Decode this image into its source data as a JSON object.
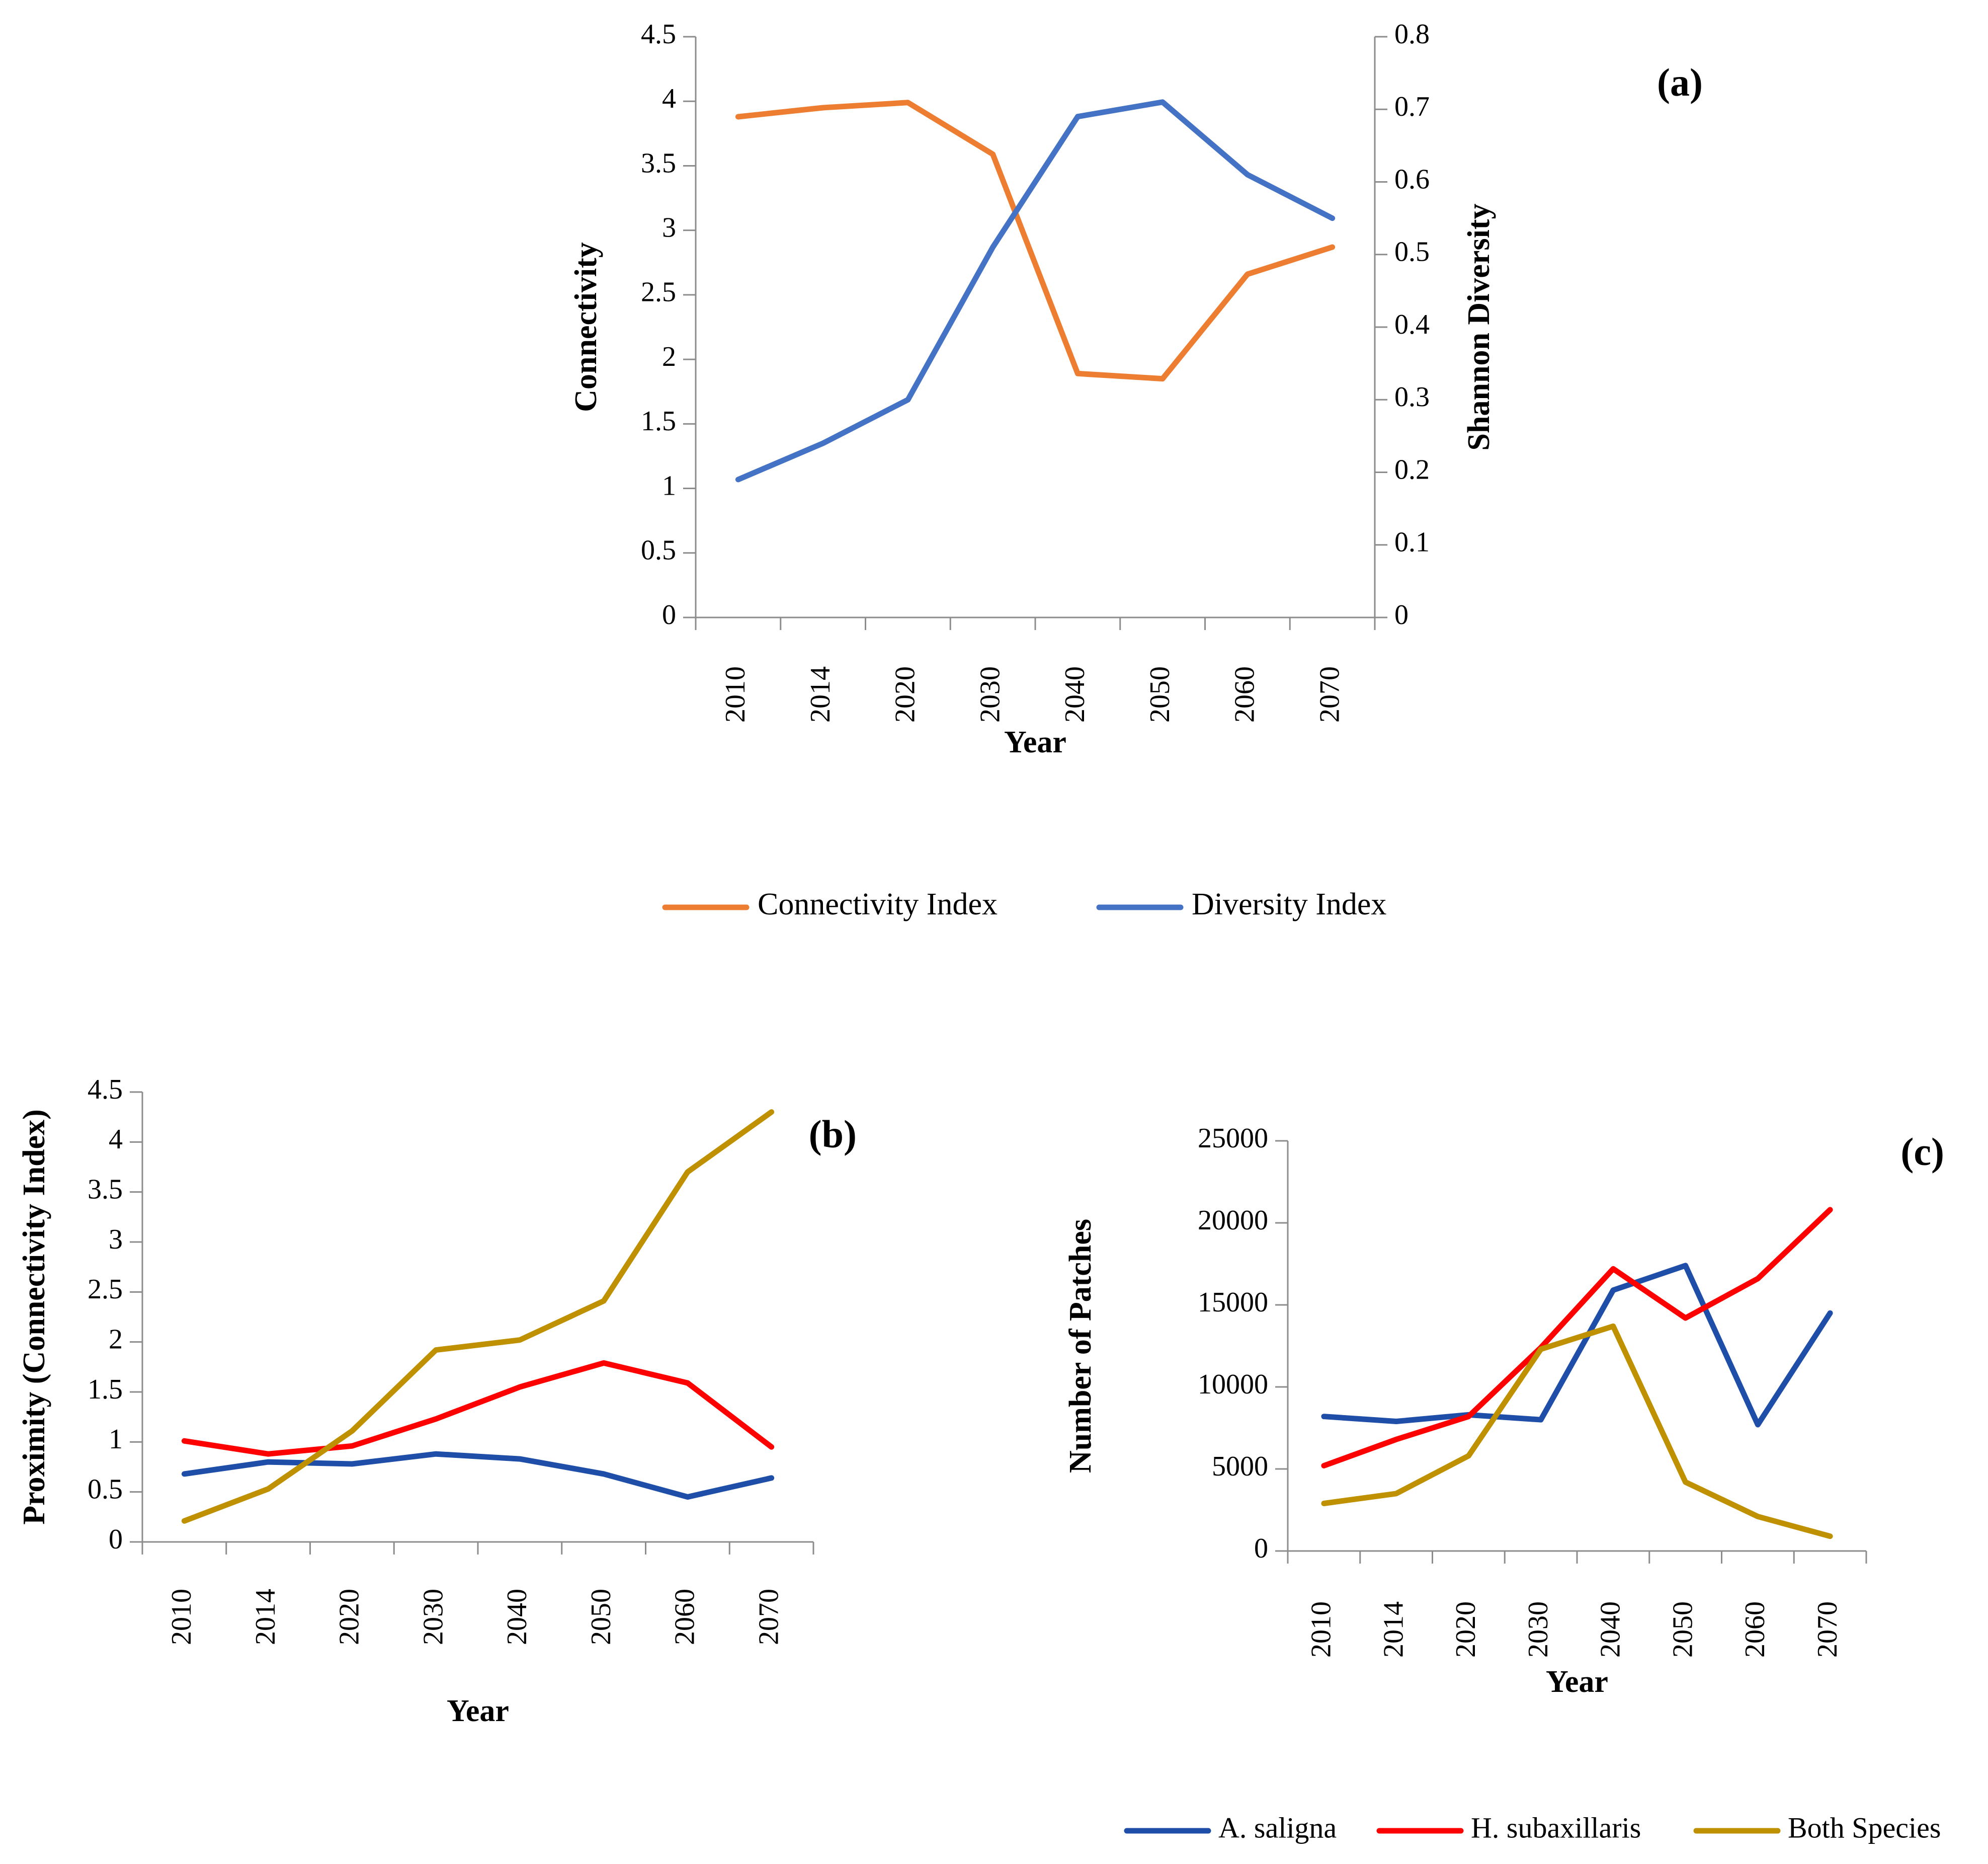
{
  "chart_data": [
    {
      "id": "a",
      "type": "line",
      "panel_label": "(a)",
      "categories": [
        "2010",
        "2014",
        "2020",
        "2030",
        "2040",
        "2050",
        "2060",
        "2070"
      ],
      "xlabel": "Year",
      "ylabel": "Connectivity",
      "ylabel_right": "Shannon Diversity",
      "ylim": [
        0,
        4.5
      ],
      "yticks": [
        "0",
        "0.5",
        "1",
        "1.5",
        "2",
        "2.5",
        "3",
        "3.5",
        "4",
        "4.5"
      ],
      "ylim_right": [
        0,
        0.8
      ],
      "yticks_right": [
        "0",
        "0.1",
        "0.2",
        "0.3",
        "0.4",
        "0.5",
        "0.6",
        "0.7",
        "0.8"
      ],
      "series": [
        {
          "name": "Connectivity Index",
          "axis": "left",
          "color": "#ED7D31",
          "values": [
            3.88,
            3.95,
            3.99,
            3.59,
            1.89,
            1.85,
            2.66,
            2.87
          ]
        },
        {
          "name": "Diversity Index",
          "axis": "right",
          "color": "#4472C4",
          "values": [
            0.19,
            0.24,
            0.3,
            0.51,
            0.69,
            0.71,
            0.61,
            0.55
          ]
        }
      ],
      "legend": [
        "Connectivity Index",
        "Diversity Index"
      ]
    },
    {
      "id": "b",
      "type": "line",
      "panel_label": "(b)",
      "categories": [
        "2010",
        "2014",
        "2020",
        "2030",
        "2040",
        "2050",
        "2060",
        "2070"
      ],
      "xlabel": "Year",
      "ylabel": "Proximity (Connectivity Index)",
      "ylim": [
        0,
        4.5
      ],
      "yticks": [
        "0",
        "0.5",
        "1",
        "1.5",
        "2",
        "2.5",
        "3",
        "3.5",
        "4",
        "4.5"
      ],
      "series": [
        {
          "name": "A. saligna",
          "color": "#1F4EA8",
          "values": [
            0.68,
            0.8,
            0.78,
            0.88,
            0.83,
            0.68,
            0.45,
            0.64
          ]
        },
        {
          "name": "H. subaxillaris",
          "color": "#FF0000",
          "values": [
            1.01,
            0.88,
            0.96,
            1.23,
            1.55,
            1.79,
            1.59,
            0.95
          ]
        },
        {
          "name": "Both Species",
          "color": "#BF9000",
          "values": [
            0.21,
            0.53,
            1.11,
            1.92,
            2.02,
            2.41,
            3.7,
            4.3
          ]
        }
      ]
    },
    {
      "id": "c",
      "type": "line",
      "panel_label": "(c)",
      "categories": [
        "2010",
        "2014",
        "2020",
        "2030",
        "2040",
        "2050",
        "2060",
        "2070"
      ],
      "xlabel": "Year",
      "ylabel": "Number of Patches",
      "ylim": [
        0,
        25000
      ],
      "yticks": [
        "0",
        "5000",
        "10000",
        "15000",
        "20000",
        "25000"
      ],
      "series": [
        {
          "name": "A. saligna",
          "color": "#1F4EA8",
          "values": [
            8200,
            7900,
            8300,
            8000,
            15900,
            17400,
            7700,
            14500
          ]
        },
        {
          "name": "H. subaxillaris",
          "color": "#FF0000",
          "values": [
            5200,
            6800,
            8200,
            12400,
            17200,
            14200,
            16600,
            20800
          ]
        },
        {
          "name": "Both Species",
          "color": "#BF9000",
          "values": [
            2900,
            3500,
            5800,
            12300,
            13700,
            4200,
            2100,
            900
          ]
        }
      ],
      "legend": [
        "A. saligna",
        "H. subaxillaris",
        "Both Species"
      ]
    }
  ]
}
